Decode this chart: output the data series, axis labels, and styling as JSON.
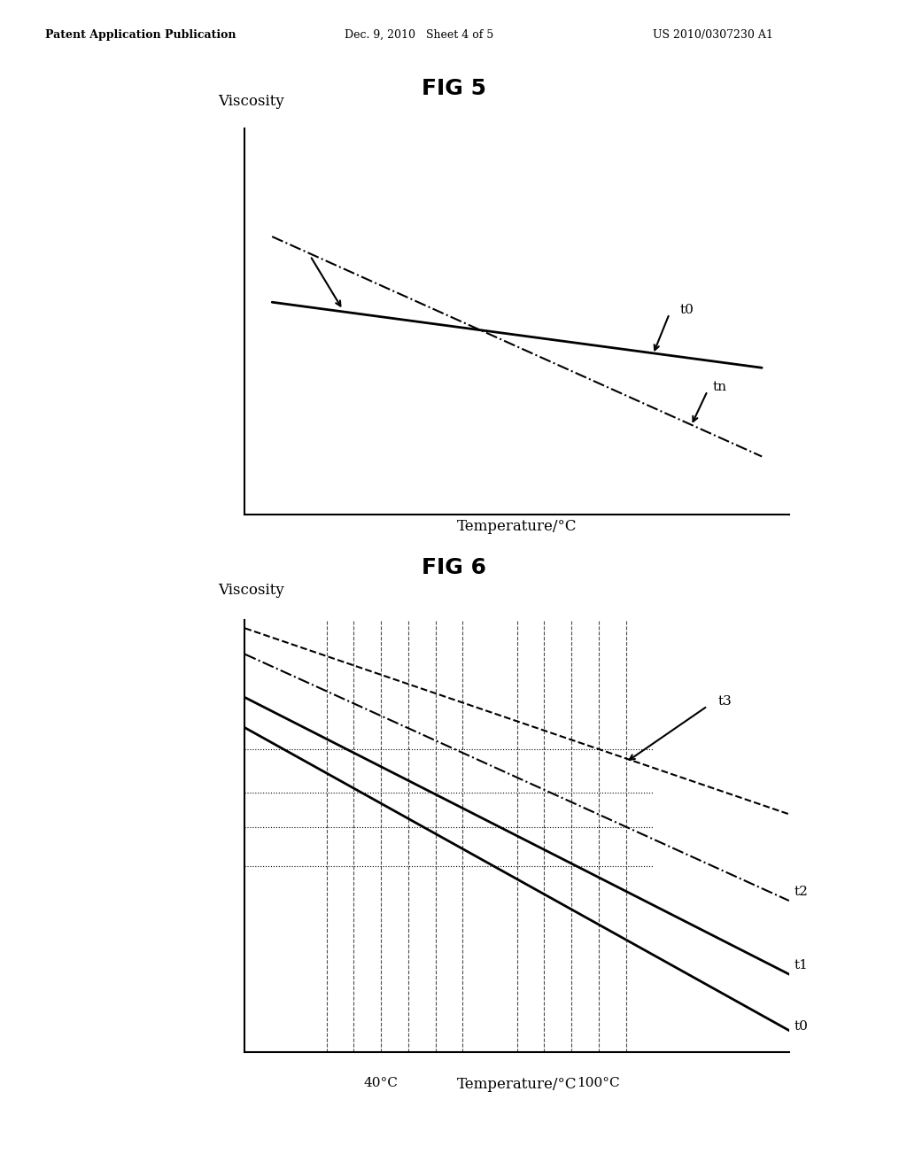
{
  "header_left": "Patent Application Publication",
  "header_mid": "Dec. 9, 2010   Sheet 4 of 5",
  "header_right": "US 2010/0307230 A1",
  "fig5_title": "FIG 5",
  "fig5_ylabel": "Viscosity",
  "fig5_xlabel": "Temperature/°C",
  "fig5_t0_label": "t0",
  "fig5_tn_label": "tn",
  "fig6_title": "FIG 6",
  "fig6_ylabel": "Viscosity",
  "fig6_xlabel": "Temperature/°C",
  "fig6_t0_label": "t0",
  "fig6_t1_label": "t1",
  "fig6_t2_label": "t2",
  "fig6_t3_label": "t3",
  "fig6_xtick_40": "40°C",
  "fig6_xtick_100": "100°C",
  "line_color": "#000000",
  "background_color": "#ffffff"
}
